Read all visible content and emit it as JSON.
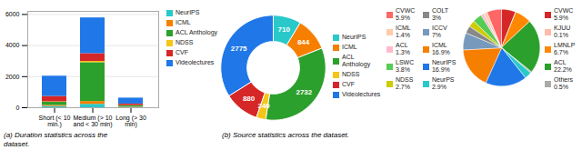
{
  "chart_data": [
    {
      "type": "bar",
      "stacked": true,
      "categories": [
        "Short (< 10\nmin.)",
        "Medium (> 10\nand < 30 min)",
        "Long (> 30\nmin)"
      ],
      "series": [
        {
          "name": "NeurIPS",
          "color": "#29c9c9",
          "values": [
            80,
            220,
            30
          ]
        },
        {
          "name": "ICML",
          "color": "#f77f00",
          "values": [
            70,
            180,
            20
          ]
        },
        {
          "name": "ACL Anthology",
          "color": "#2ca02c",
          "values": [
            200,
            2500,
            80
          ]
        },
        {
          "name": "NDSS",
          "color": "#f5c518",
          "values": [
            30,
            80,
            10
          ]
        },
        {
          "name": "CVF",
          "color": "#d62728",
          "values": [
            350,
            500,
            100
          ]
        },
        {
          "name": "Videolectures",
          "color": "#1f77e8",
          "values": [
            1300,
            2300,
            380
          ]
        }
      ],
      "ylim": [
        0,
        6200
      ],
      "yticks": [
        0,
        2000,
        4000,
        6000
      ],
      "grid": true,
      "legend": "right",
      "caption": "(a) Duration statistics across the\ndataset."
    },
    {
      "type": "donut",
      "categories": [
        "NeurIPS",
        "ICML",
        "ACL\nAnthology",
        "NDSS",
        "CVF",
        "Videolectures"
      ],
      "values": [
        710,
        844,
        2732,
        240,
        880,
        2775
      ],
      "colors": [
        "#29c9c9",
        "#f77f00",
        "#2ca02c",
        "#f5c518",
        "#d62728",
        "#1f77e8"
      ],
      "data_labels": true,
      "legend": "right",
      "caption": "(b) Source statistics across the dataset."
    },
    {
      "type": "pie",
      "categories": [
        "CVWC\n5.9%",
        "KJUU\n0.1%",
        "LMNLP\n6.7%",
        "ACL\n22.2%",
        "Others\n0.5%",
        "NeurPS\n2.9%",
        "NeurIPS\n16.9%",
        "ICML\n16.9%",
        "ICCV\n7%",
        "COLT\n3%",
        "NDSS\n2.7%",
        "LSWC\n3.8%",
        "ACL\n1.3%",
        "ICML\n1.4%",
        "CVWC\n5.9%"
      ],
      "values": [
        5.9,
        0.1,
        6.7,
        22.2,
        0.5,
        2.9,
        16.9,
        16.9,
        7.0,
        3.0,
        2.7,
        3.8,
        1.3,
        1.4,
        5.9
      ],
      "colors": [
        "#d62728",
        "#ffbbaa",
        "#ff8800",
        "#2ca02c",
        "#aaaaaa",
        "#29c9c9",
        "#1f77e8",
        "#f77f00",
        "#7799bb",
        "#888888",
        "#cccc00",
        "#55cc55",
        "#ffbbcc",
        "#ffccaa",
        "#ff6666"
      ],
      "legend_side": [
        "right",
        "right",
        "right",
        "right",
        "right",
        "left",
        "left",
        "left",
        "left",
        "left",
        "left",
        "left",
        "left",
        "left",
        "left"
      ]
    }
  ]
}
